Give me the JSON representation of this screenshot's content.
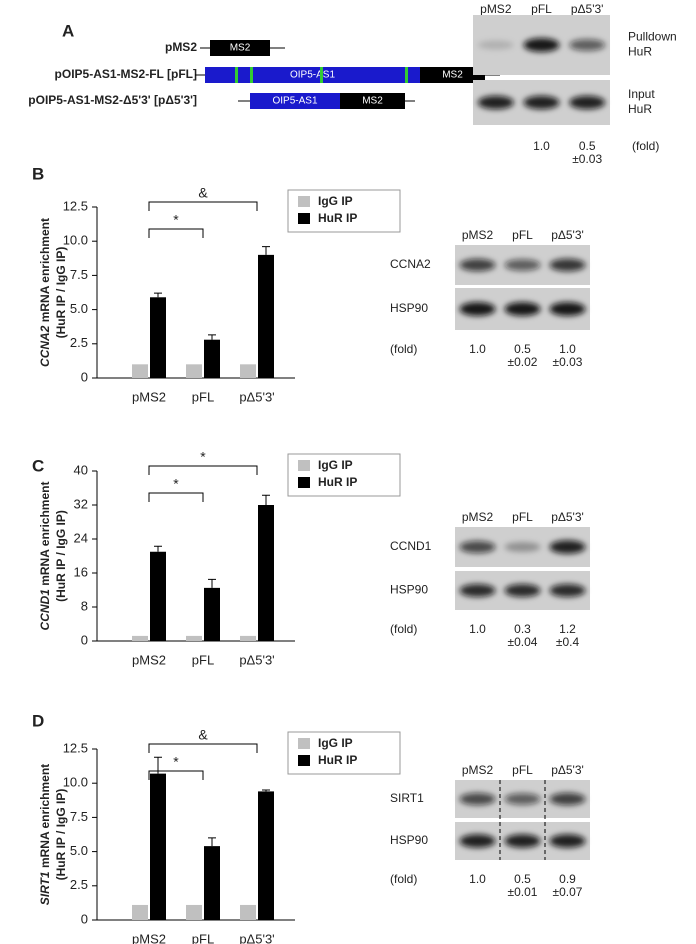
{
  "panel_labels": [
    "A",
    "B",
    "C",
    "D"
  ],
  "construct": {
    "rows": [
      {
        "name": "pMS2",
        "parts": [
          "MS2"
        ]
      },
      {
        "name": "pOIP5-AS1-MS2-FL  [pFL]",
        "parts": [
          "OIP5-AS1",
          "MS2"
        ]
      },
      {
        "name": "pOIP5-AS1-MS2-Δ5'3'  [pΔ5'3']",
        "parts": [
          "OIP5-AS1",
          "MS2"
        ]
      }
    ]
  },
  "blots": [
    {
      "lanes": [
        "pMS2",
        "pFL",
        "pΔ5'3'"
      ],
      "rows": [
        [
          "Pulldown",
          "HuR"
        ],
        [
          "Input",
          "HuR"
        ]
      ],
      "fold_label": "(fold)",
      "fold": [
        [],
        [
          "1.0"
        ],
        [
          "0.5",
          "±0.03"
        ]
      ]
    },
    {
      "lanes": [
        "pMS2",
        "pFL",
        "pΔ5'3'"
      ],
      "rows": [
        [
          "CCNA2"
        ],
        [
          "HSP90"
        ]
      ],
      "fold_label": "(fold)",
      "fold": [
        [
          "1.0"
        ],
        [
          "0.5",
          "±0.02"
        ],
        [
          "1.0",
          "±0.03"
        ]
      ]
    },
    {
      "lanes": [
        "pMS2",
        "pFL",
        "pΔ5'3'"
      ],
      "rows": [
        [
          "CCND1"
        ],
        [
          "HSP90"
        ]
      ],
      "fold_label": "(fold)",
      "fold": [
        [
          "1.0"
        ],
        [
          "0.3",
          "±0.04"
        ],
        [
          "1.2",
          "±0.4"
        ]
      ]
    },
    {
      "lanes": [
        "pMS2",
        "pFL",
        "pΔ5'3'"
      ],
      "rows": [
        [
          "SIRT1"
        ],
        [
          "HSP90"
        ]
      ],
      "fold_label": "(fold)",
      "fold": [
        [
          "1.0"
        ],
        [
          "0.5",
          "±0.01"
        ],
        [
          "0.9",
          "±0.07"
        ]
      ]
    }
  ],
  "chart_data": [
    {
      "type": "bar",
      "ylabel_gene": "CCNA2",
      "ylabel": " mRNA enrichment",
      "ylabel2": "(HuR IP / IgG IP)",
      "categories": [
        "pMS2",
        "pFL",
        "pΔ5'3'"
      ],
      "series": [
        {
          "name": "IgG IP",
          "color": "#c0c0c0",
          "values": [
            1,
            1,
            1
          ]
        },
        {
          "name": "HuR IP",
          "color": "#000000",
          "values": [
            5.9,
            2.8,
            9.0
          ],
          "errors": [
            0.3,
            0.35,
            0.6
          ]
        }
      ],
      "ylim": [
        0,
        12.5
      ],
      "yticks": [
        0,
        2.5,
        {
          "value": 5,
          "label": "5.0"
        },
        7.5,
        {
          "value": 10,
          "label": "10.0"
        },
        12.5
      ],
      "annotations": [
        "*",
        "&"
      ]
    },
    {
      "type": "bar",
      "ylabel_gene": "CCND1",
      "ylabel": " mRNA enrichment",
      "ylabel2": "(HuR IP / IgG IP)",
      "categories": [
        "pMS2",
        "pFL",
        "pΔ5'3'"
      ],
      "series": [
        {
          "name": "IgG IP",
          "color": "#c0c0c0",
          "values": [
            1.2,
            1.2,
            1.2
          ]
        },
        {
          "name": "HuR IP",
          "color": "#000000",
          "values": [
            21,
            12.5,
            32
          ],
          "errors": [
            1.3,
            2,
            2.3
          ]
        }
      ],
      "ylim": [
        0,
        40
      ],
      "yticks": [
        0,
        8,
        16,
        24,
        32,
        40
      ],
      "annotations": [
        "*",
        "*"
      ]
    },
    {
      "type": "bar",
      "ylabel_gene": "SIRT1",
      "ylabel": " mRNA enrichment",
      "ylabel2": "(HuR IP / IgG IP)",
      "categories": [
        "pMS2",
        "pFL",
        "pΔ5'3'"
      ],
      "series": [
        {
          "name": "IgG IP",
          "color": "#c0c0c0",
          "values": [
            1.1,
            1.1,
            1.1
          ]
        },
        {
          "name": "HuR IP",
          "color": "#000000",
          "values": [
            10.7,
            5.4,
            9.4
          ],
          "errors": [
            1.2,
            0.6,
            0.1
          ]
        }
      ],
      "ylim": [
        0,
        12.5
      ],
      "yticks": [
        0,
        2.5,
        {
          "value": 5,
          "label": "5.0"
        },
        7.5,
        {
          "value": 10,
          "label": "10.0"
        },
        12.5
      ],
      "annotations": [
        "*",
        "&"
      ]
    }
  ]
}
